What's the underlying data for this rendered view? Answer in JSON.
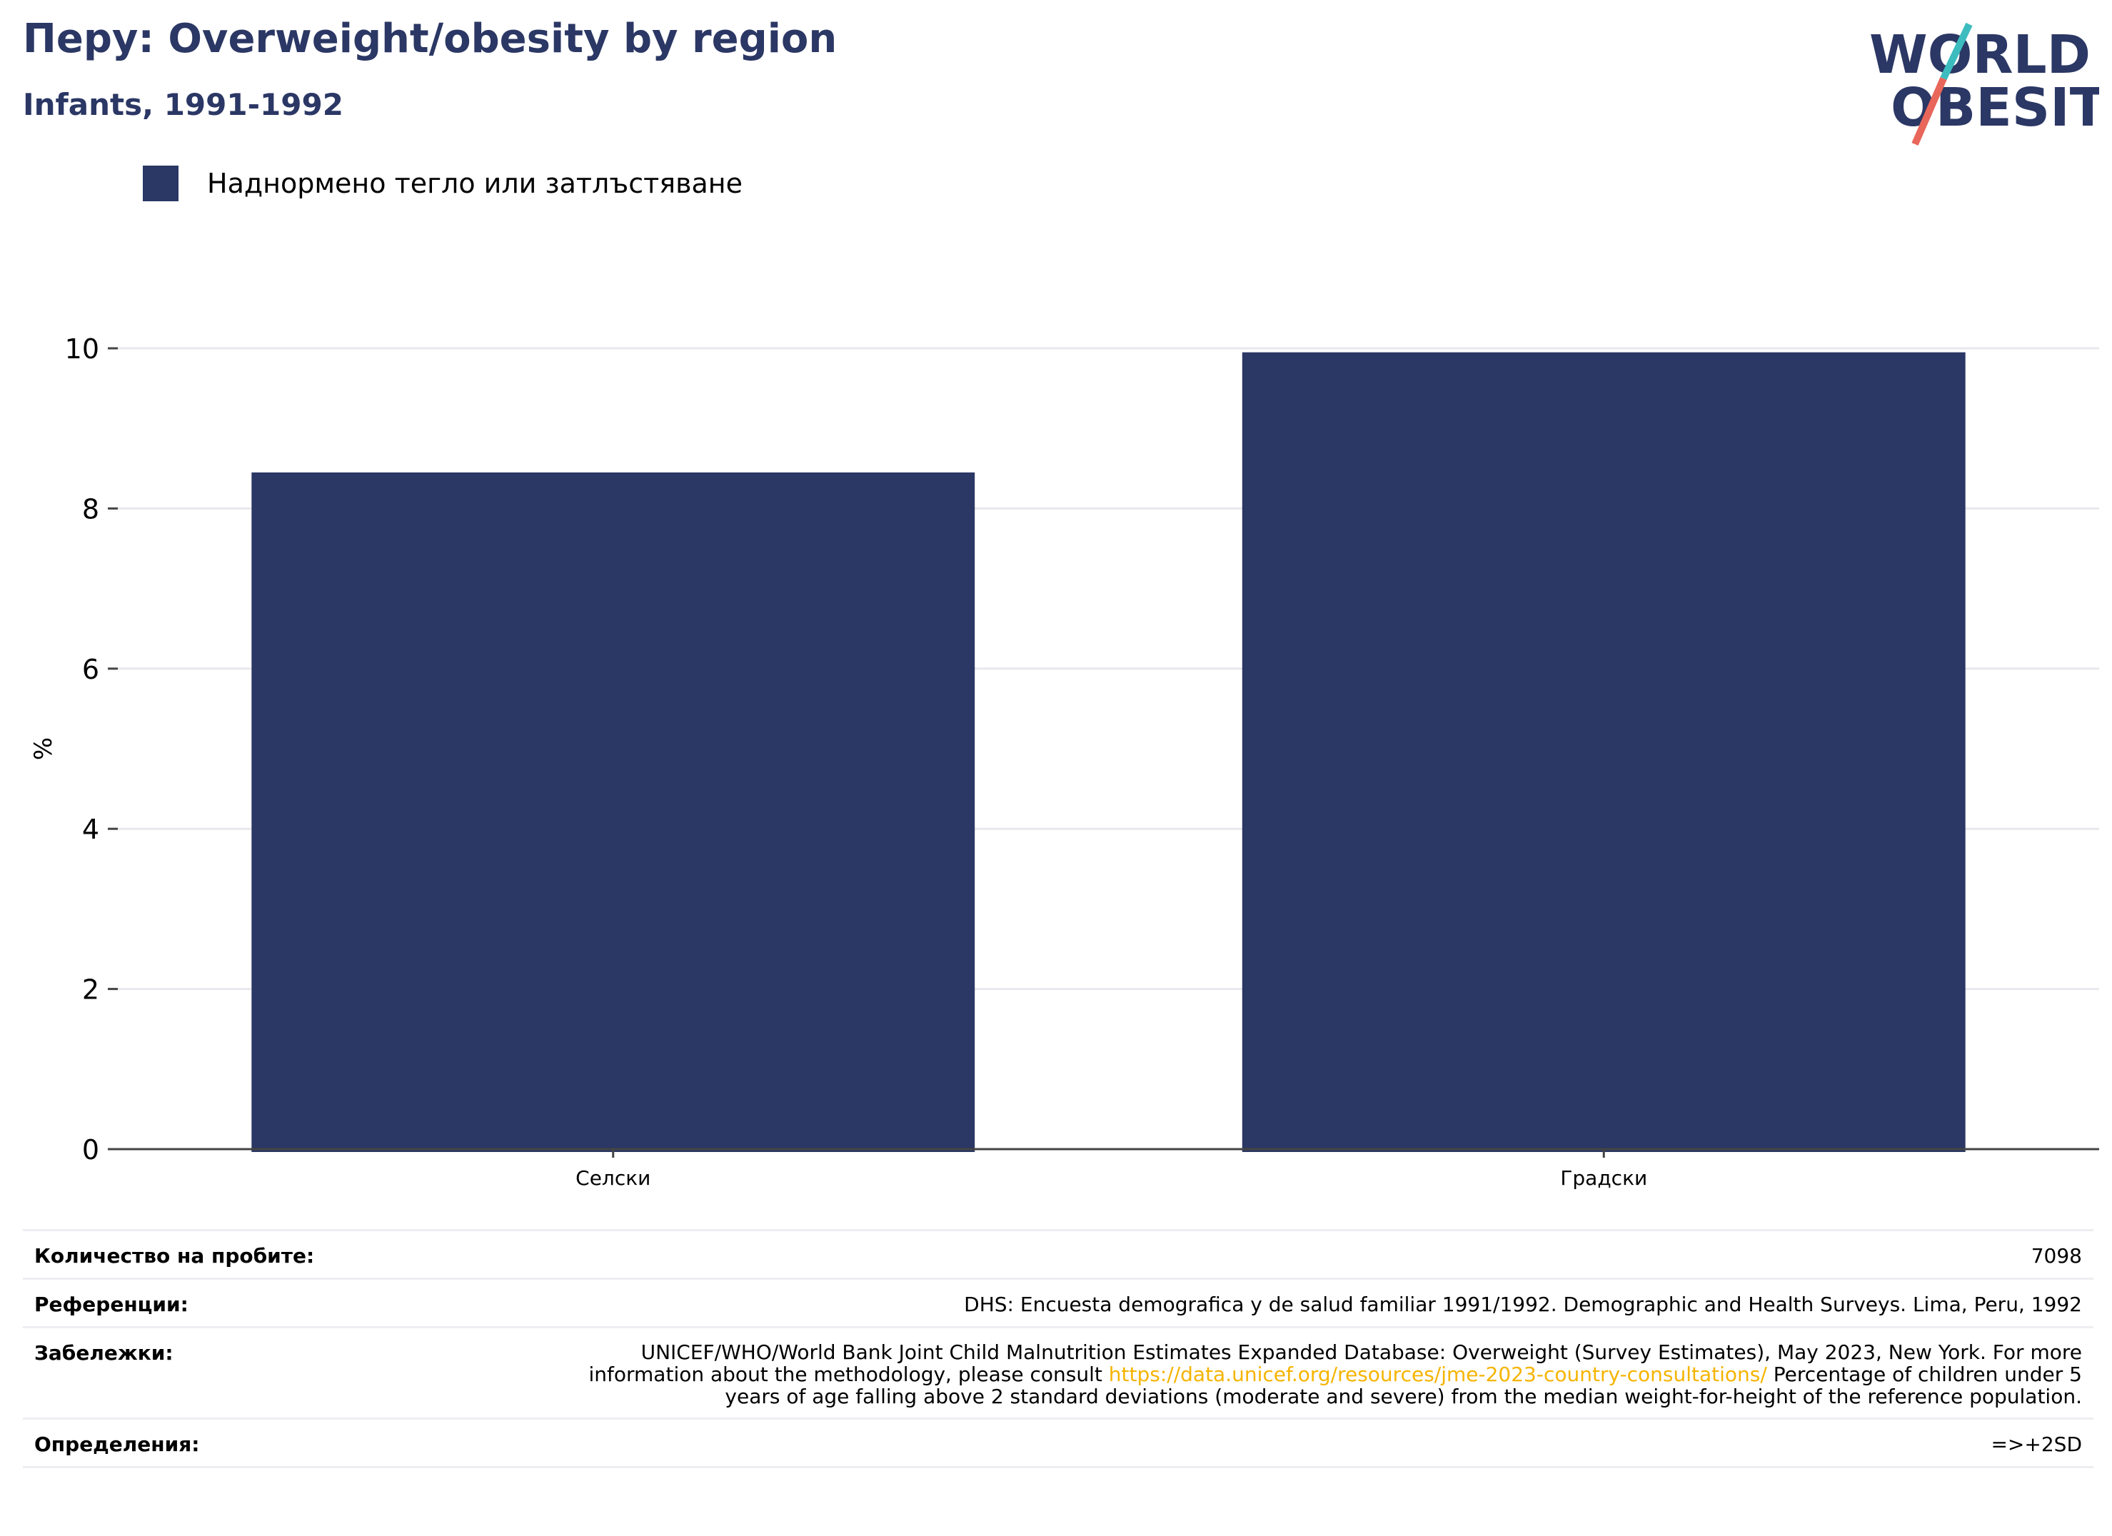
{
  "header": {
    "title": "Перу: Overweight/obesity by region",
    "subtitle": "Infants, 1991-1992"
  },
  "logo": {
    "line1": "WORLD",
    "line2": "OBESITY",
    "colors": {
      "text": "#2b3764",
      "slash_top": "#3cbcbf",
      "slash_bottom": "#e8665a"
    }
  },
  "legend": {
    "label": "Наднормено тегло или затлъстяване",
    "color": "#2b3764"
  },
  "chart_data": {
    "type": "bar",
    "categories": [
      "Селски",
      "Градски"
    ],
    "series": [
      {
        "name": "Наднормено тегло или затлъстяване",
        "values": [
          8.45,
          9.95
        ],
        "color": "#2b3764"
      }
    ],
    "ylabel": "%",
    "xlabel": "",
    "ylim": [
      0,
      10
    ],
    "yticks": [
      0,
      2,
      4,
      6,
      8,
      10
    ],
    "grid": true,
    "legend_position": "top-left"
  },
  "info": {
    "sample_size": {
      "label": "Количество на пробите:",
      "value": "7098"
    },
    "references": {
      "label": "Референции:",
      "value": "DHS: Encuesta demografica y de salud familiar 1991/1992. Demographic and Health Surveys. Lima, Peru, 1992"
    },
    "notes": {
      "label": "Забележки:",
      "text_before": "UNICEF/WHO/World Bank Joint Child Malnutrition Estimates Expanded Database: Overweight (Survey Estimates), May 2023, New York. For more information about the methodology, please consult ",
      "link": "https://data.unicef.org/resources/jme-2023-country-consultations/",
      "text_after": " Percentage of children under 5 years of age falling above 2 standard deviations (moderate and severe) from the median weight-for-height of the reference population."
    },
    "definitions": {
      "label": "Определения:",
      "value": "=>+2SD"
    }
  }
}
